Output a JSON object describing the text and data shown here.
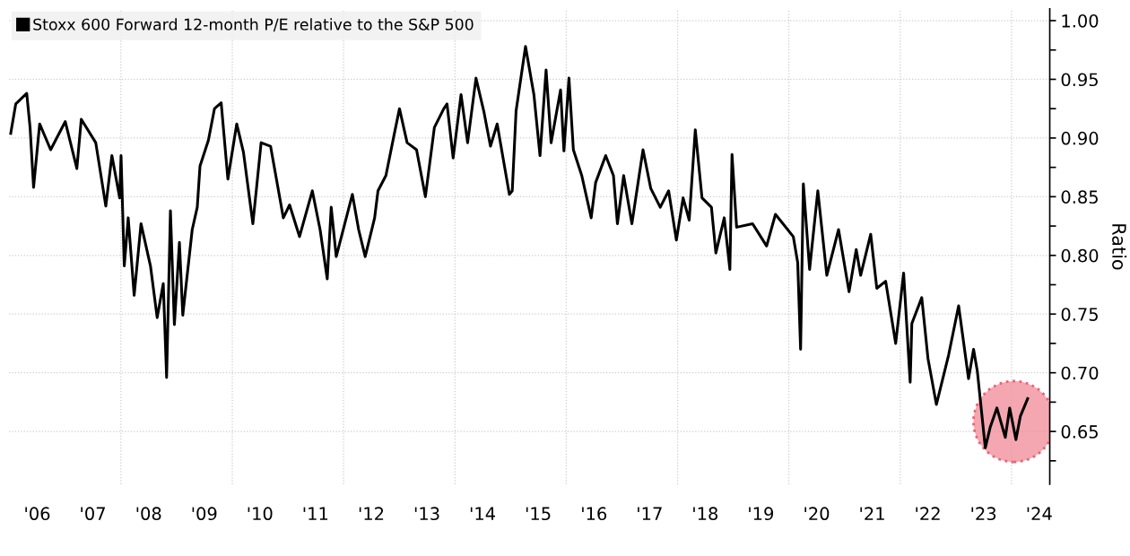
{
  "chart_data": {
    "type": "line",
    "ylabel": "Ratio",
    "legend": "top left",
    "grid": "y",
    "line_style": "solid",
    "marker": "none",
    "xlim": [
      "2005-12-28",
      "2024-09-08"
    ],
    "ylim": [
      0.605,
      1.01
    ],
    "xticks": [
      {
        "value": "2006-07-01",
        "label": "'06"
      },
      {
        "value": "2007-07-01",
        "label": "'07"
      },
      {
        "value": "2008-07-01",
        "label": "'08"
      },
      {
        "value": "2009-07-01",
        "label": "'09"
      },
      {
        "value": "2010-07-01",
        "label": "'10"
      },
      {
        "value": "2011-07-01",
        "label": "'11"
      },
      {
        "value": "2012-07-01",
        "label": "'12"
      },
      {
        "value": "2013-07-01",
        "label": "'13"
      },
      {
        "value": "2014-07-01",
        "label": "'14"
      },
      {
        "value": "2015-07-01",
        "label": "'15"
      },
      {
        "value": "2016-07-01",
        "label": "'16"
      },
      {
        "value": "2017-07-01",
        "label": "'17"
      },
      {
        "value": "2018-07-01",
        "label": "'18"
      },
      {
        "value": "2019-07-01",
        "label": "'19"
      },
      {
        "value": "2020-07-01",
        "label": "'20"
      },
      {
        "value": "2021-07-01",
        "label": "'21"
      },
      {
        "value": "2022-07-01",
        "label": "'22"
      },
      {
        "value": "2023-07-01",
        "label": "'23"
      },
      {
        "value": "2024-07-01",
        "label": "'24"
      }
    ],
    "yticks": [
      {
        "value": 0.625,
        "label": null
      },
      {
        "value": 0.65,
        "label": "0.65"
      },
      {
        "value": 0.675,
        "label": null
      },
      {
        "value": 0.7,
        "label": "0.70"
      },
      {
        "value": 0.725,
        "label": null
      },
      {
        "value": 0.75,
        "label": "0.75"
      },
      {
        "value": 0.775,
        "label": null
      },
      {
        "value": 0.8,
        "label": "0.80"
      },
      {
        "value": 0.825,
        "label": null
      },
      {
        "value": 0.85,
        "label": "0.85"
      },
      {
        "value": 0.875,
        "label": null
      },
      {
        "value": 0.9,
        "label": "0.90"
      },
      {
        "value": 0.925,
        "label": null
      },
      {
        "value": 0.95,
        "label": "0.95"
      },
      {
        "value": 0.975,
        "label": null
      },
      {
        "value": 1.0,
        "label": "1.00"
      }
    ],
    "ref_lines": [
      {
        "axis": "x",
        "value": "2008-01-01",
        "color": "#cccccc",
        "line_style": "dotted"
      },
      {
        "axis": "x",
        "value": "2010-01-01",
        "color": "#cccccc",
        "line_style": "dotted"
      },
      {
        "axis": "x",
        "value": "2012-01-01",
        "color": "#cccccc",
        "line_style": "dotted"
      },
      {
        "axis": "x",
        "value": "2014-01-01",
        "color": "#cccccc",
        "line_style": "dotted"
      },
      {
        "axis": "x",
        "value": "2016-01-01",
        "color": "#cccccc",
        "line_style": "dotted"
      },
      {
        "axis": "x",
        "value": "2018-01-01",
        "color": "#cccccc",
        "line_style": "dotted"
      },
      {
        "axis": "x",
        "value": "2020-01-01",
        "color": "#cccccc",
        "line_style": "dotted"
      },
      {
        "axis": "x",
        "value": "2022-01-01",
        "color": "#cccccc",
        "line_style": "dotted"
      },
      {
        "axis": "x",
        "value": "2024-01-01",
        "color": "#cccccc",
        "line_style": "dotted"
      }
    ],
    "series": [
      {
        "name": "Stoxx 600 Forward 12-month P/E relative to the S&P 500",
        "color": "#000000",
        "x": [
          "2006-01-08",
          "2006-02-10",
          "2006-04-23",
          "2006-05-15",
          "2006-06-07",
          "2006-07-17",
          "2006-09-27",
          "2007-01-01",
          "2007-03-18",
          "2007-04-16",
          "2007-07-20",
          "2007-09-24",
          "2007-11-03",
          "2007-12-24",
          "2008-01-02",
          "2008-01-23",
          "2008-02-18",
          "2008-03-28",
          "2008-05-12",
          "2008-07-13",
          "2008-08-26",
          "2008-10-05",
          "2008-10-27",
          "2008-11-21",
          "2008-12-17",
          "2009-01-19",
          "2009-02-10",
          "2009-04-13",
          "2009-05-16",
          "2009-06-03",
          "2009-07-28",
          "2009-09-06",
          "2009-10-20",
          "2009-12-03",
          "2010-01-30",
          "2010-03-15",
          "2010-05-16",
          "2010-06-07",
          "2010-07-09",
          "2010-09-09",
          "2010-12-02",
          "2011-01-12",
          "2011-03-18",
          "2011-06-10",
          "2011-07-31",
          "2011-09-16",
          "2011-10-12",
          "2011-11-14",
          "2012-02-28",
          "2012-04-09",
          "2012-05-22",
          "2012-07-23",
          "2012-08-14",
          "2012-10-05",
          "2012-11-25",
          "2013-01-02",
          "2013-02-21",
          "2013-04-24",
          "2013-06-21",
          "2013-08-19",
          "2013-10-20",
          "2013-11-10",
          "2013-12-20",
          "2014-02-10",
          "2014-03-25",
          "2014-05-19",
          "2014-07-09",
          "2014-08-22",
          "2014-10-05",
          "2014-12-24",
          "2015-01-12",
          "2015-02-06",
          "2015-04-09",
          "2015-06-03",
          "2015-07-13",
          "2015-08-22",
          "2015-09-24",
          "2015-11-25",
          "2015-12-17",
          "2016-01-19",
          "2016-02-17",
          "2016-04-12",
          "2016-06-13",
          "2016-07-12",
          "2016-09-16",
          "2016-11-06",
          "2016-12-02",
          "2017-01-12",
          "2017-03-07",
          "2017-05-19",
          "2017-07-09",
          "2017-09-09",
          "2017-11-03",
          "2017-12-24",
          "2018-02-06",
          "2018-03-18",
          "2018-04-27",
          "2018-06-10",
          "2018-08-11",
          "2018-09-09",
          "2018-11-03",
          "2018-12-10",
          "2018-12-24",
          "2019-01-23",
          "2019-05-08",
          "2019-08-08",
          "2019-10-05",
          "2020-01-30",
          "2020-02-28",
          "2020-03-18",
          "2020-04-05",
          "2020-05-16",
          "2020-07-09",
          "2020-09-06",
          "2020-11-22",
          "2021-01-30",
          "2021-03-18",
          "2021-04-16",
          "2021-06-21",
          "2021-07-31",
          "2021-09-27",
          "2021-12-02",
          "2022-01-23",
          "2022-03-07",
          "2022-03-18",
          "2022-05-22",
          "2022-07-02",
          "2022-08-26",
          "2022-11-14",
          "2023-01-19",
          "2023-03-25",
          "2023-04-27",
          "2023-05-22",
          "2023-07-13",
          "2023-08-15",
          "2023-09-27",
          "2023-11-21",
          "2023-12-20",
          "2024-01-30",
          "2024-02-28",
          "2024-04-16"
        ],
        "values": [
          0.904,
          0.929,
          0.938,
          0.909,
          0.858,
          0.912,
          0.89,
          0.914,
          0.874,
          0.916,
          0.896,
          0.842,
          0.885,
          0.849,
          0.885,
          0.791,
          0.832,
          0.766,
          0.827,
          0.791,
          0.747,
          0.776,
          0.696,
          0.838,
          0.741,
          0.811,
          0.749,
          0.822,
          0.841,
          0.876,
          0.898,
          0.925,
          0.93,
          0.865,
          0.912,
          0.888,
          0.827,
          0.855,
          0.896,
          0.893,
          0.832,
          0.843,
          0.816,
          0.855,
          0.822,
          0.78,
          0.841,
          0.799,
          0.852,
          0.822,
          0.799,
          0.832,
          0.855,
          0.868,
          0.901,
          0.925,
          0.896,
          0.89,
          0.85,
          0.909,
          0.925,
          0.929,
          0.883,
          0.937,
          0.896,
          0.951,
          0.923,
          0.893,
          0.912,
          0.852,
          0.855,
          0.923,
          0.978,
          0.937,
          0.885,
          0.958,
          0.896,
          0.941,
          0.889,
          0.951,
          0.89,
          0.868,
          0.832,
          0.862,
          0.885,
          0.868,
          0.827,
          0.868,
          0.827,
          0.89,
          0.857,
          0.841,
          0.855,
          0.813,
          0.849,
          0.83,
          0.907,
          0.849,
          0.841,
          0.802,
          0.832,
          0.788,
          0.886,
          0.824,
          0.827,
          0.808,
          0.835,
          0.816,
          0.794,
          0.72,
          0.861,
          0.788,
          0.855,
          0.783,
          0.822,
          0.769,
          0.805,
          0.783,
          0.818,
          0.772,
          0.778,
          0.725,
          0.785,
          0.692,
          0.742,
          0.764,
          0.712,
          0.673,
          0.715,
          0.757,
          0.695,
          0.72,
          0.701,
          0.636,
          0.654,
          0.67,
          0.645,
          0.67,
          0.643,
          0.663,
          0.678
        ]
      }
    ]
  }
}
